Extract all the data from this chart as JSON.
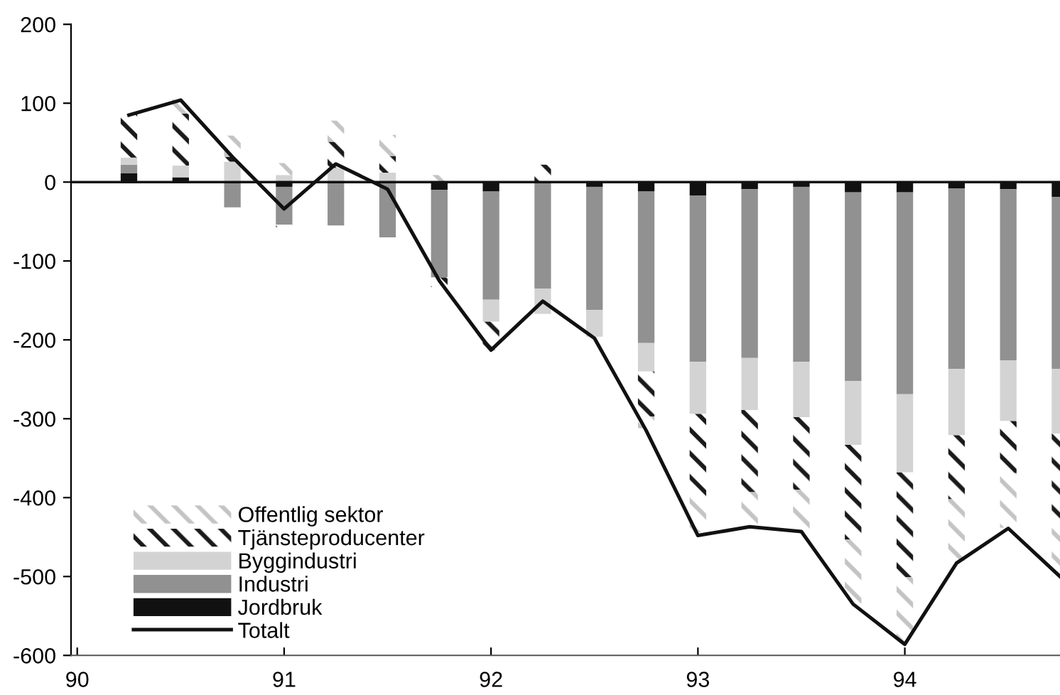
{
  "chart_data": {
    "type": "bar",
    "stacked": true,
    "x": [
      90.25,
      90.5,
      90.75,
      91.0,
      91.25,
      91.5,
      91.75,
      92.0,
      92.25,
      92.5,
      92.75,
      93.0,
      93.25,
      93.5,
      93.75,
      94.0,
      94.25,
      94.5,
      94.75
    ],
    "series": [
      {
        "name": "Jordbruk",
        "color": "#111111",
        "values": [
          11,
          6,
          0,
          -6,
          0,
          0,
          -10,
          -12,
          null,
          -6,
          -12,
          -17,
          -9,
          -6,
          -13,
          -13,
          -8,
          -9,
          -19
        ]
      },
      {
        "name": "Industri",
        "color": "#919191",
        "values": [
          11,
          0,
          -32,
          -48,
          -55,
          -70,
          -111,
          -137,
          -135,
          -156,
          -192,
          -211,
          -214,
          -222,
          -239,
          -256,
          -229,
          -217,
          -218
        ]
      },
      {
        "name": "Byggindustri",
        "color": "#d3d3d3",
        "values": [
          9,
          15,
          26,
          9,
          18,
          12,
          0,
          -28,
          -32,
          -34,
          -36,
          -66,
          -66,
          -70,
          -81,
          -99,
          -84,
          -77,
          -82
        ]
      },
      {
        "name": "Tjänsteproducenter",
        "color": "#1a1a1a",
        "values": [
          55,
          66,
          6,
          -3,
          33,
          21,
          -12,
          -36,
          22,
          null,
          -57,
          -105,
          -104,
          -92,
          -120,
          -133,
          -81,
          -66,
          -111
        ]
      },
      {
        "name": "Offentlig sektor",
        "color": "#c4c4c4",
        "values": [
          0,
          18,
          27,
          15,
          27,
          27,
          9,
          0,
          0,
          0,
          -15,
          -45,
          -42,
          -52,
          -81,
          -84,
          -78,
          -69,
          -70
        ]
      },
      {
        "name": "Totalt",
        "type": "line",
        "color": "#111111",
        "values": [
          85,
          104,
          32,
          -34,
          23,
          -9,
          -125,
          -213,
          -151,
          -198,
          -315,
          -448,
          -437,
          -443,
          -535,
          -586,
          -483,
          -439,
          -500
        ]
      }
    ],
    "xlim": [
      89.97,
      94.75
    ],
    "xticks": [
      90,
      91,
      92,
      93,
      94
    ],
    "ylim": [
      -600,
      200
    ],
    "yticks": [
      -600,
      -500,
      -400,
      -300,
      -200,
      -100,
      0,
      100,
      200
    ],
    "ref_lines": [
      {
        "axis": "y",
        "value": 0,
        "color": "#111111"
      }
    ],
    "legend": "bottom left",
    "grid": false
  }
}
